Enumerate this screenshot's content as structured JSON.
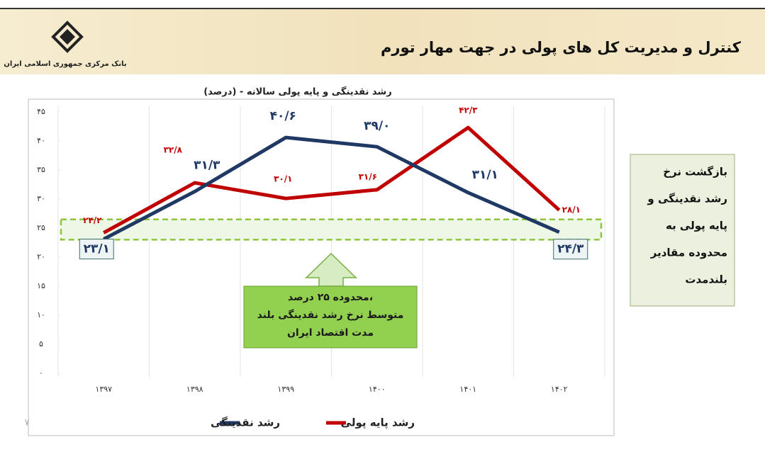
{
  "header": {
    "title": "کنترل و مدیریت کل های پولی در جهت مهار تورم",
    "bank": "بانک مرکزی جمهوری اسلامی ایران"
  },
  "side_note": {
    "lines": [
      "بازگشت نرخ",
      "رشد نقدینگی و",
      "پایه پولی به",
      "محدوده مقادیر",
      "بلندمدت"
    ]
  },
  "page_number": "۷",
  "chart_data": {
    "type": "line",
    "title": "رشد نقدینگی و پایه پولی سالانه - (درصد)",
    "categories": [
      "۱۳۹۷",
      "۱۳۹۸",
      "۱۳۹۹",
      "۱۴۰۰",
      "۱۴۰۱",
      "۱۴۰۲"
    ],
    "series": [
      {
        "name": "رشد نقدینگی",
        "color": "#1f3864",
        "values": [
          23.1,
          31.3,
          40.6,
          39.0,
          31.1,
          24.3
        ],
        "value_labels": [
          "۲۳/۱",
          "۳۱/۳",
          "۴۰/۶",
          "۳۹/۰",
          "۳۱/۱",
          "۲۴/۳"
        ]
      },
      {
        "name": "رشد پایه پولی",
        "color": "#c00000",
        "values": [
          24.2,
          32.8,
          30.1,
          31.6,
          42.3,
          28.1
        ],
        "value_labels": [
          "۲۴/۲",
          "۳۲/۸",
          "۳۰/۱",
          "۳۱/۶",
          "۴۲/۳",
          "۲۸/۱"
        ]
      }
    ],
    "ylim": [
      0,
      45
    ],
    "yticks": [
      {
        "value": 0,
        "label": "۰"
      },
      {
        "value": 5,
        "label": "۵"
      },
      {
        "value": 10,
        "label": "۱۰"
      },
      {
        "value": 15,
        "label": "۱۵"
      },
      {
        "value": 20,
        "label": "۲۰"
      },
      {
        "value": 25,
        "label": "۲۵"
      },
      {
        "value": 30,
        "label": "۳۰"
      },
      {
        "value": 35,
        "label": "۳۵"
      },
      {
        "value": 40,
        "label": "۴۰"
      },
      {
        "value": 45,
        "label": "۴۵"
      }
    ],
    "grid": true,
    "band": [
      23,
      26.5
    ],
    "annotation": [
      "محدوده ۲۵ درصد،",
      "متوسط نرخ رشد نقدینگی بلند",
      "مدت اقتصاد ایران"
    ]
  }
}
